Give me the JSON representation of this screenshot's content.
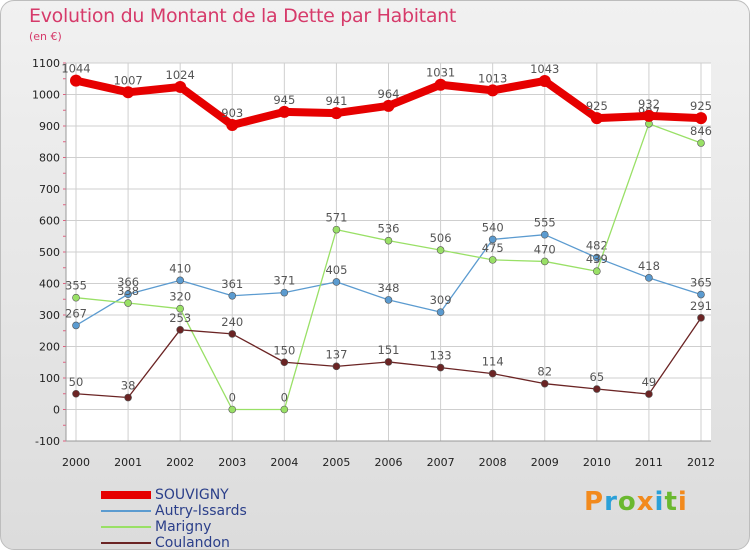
{
  "title": "Evolution du Montant de la Dette par Habitant",
  "subtitle": "(en €)",
  "logo": {
    "text": "Proxiti",
    "colors": [
      "#f28a1d",
      "#2aa0d8",
      "#6ab82f",
      "#f28a1d",
      "#2aa0d8",
      "#6ab82f",
      "#f28a1d"
    ]
  },
  "chart_data": {
    "type": "line",
    "categories": [
      "2000",
      "2001",
      "2002",
      "2003",
      "2004",
      "2005",
      "2006",
      "2007",
      "2008",
      "2009",
      "2010",
      "2011",
      "2012"
    ],
    "ylim": [
      -100,
      1100
    ],
    "yticks": [
      -100,
      0,
      100,
      200,
      300,
      400,
      500,
      600,
      700,
      800,
      900,
      1000,
      1100
    ],
    "grid": true,
    "legend_position": "bottom-left",
    "series": [
      {
        "name": "SOUVIGNY",
        "color": "#e60000",
        "width": 8,
        "values": [
          1044,
          1007,
          1024,
          903,
          945,
          941,
          964,
          1031,
          1013,
          1043,
          925,
          932,
          925
        ]
      },
      {
        "name": "Autry-Issards",
        "color": "#5b9bd0",
        "width": 1.3,
        "values": [
          267,
          366,
          410,
          361,
          371,
          405,
          348,
          309,
          540,
          555,
          482,
          418,
          365
        ]
      },
      {
        "name": "Marigny",
        "color": "#99e066",
        "width": 1.3,
        "values": [
          355,
          338,
          320,
          0,
          0,
          571,
          536,
          506,
          475,
          470,
          439,
          907,
          846
        ]
      },
      {
        "name": "Coulandon",
        "color": "#6b2424",
        "width": 1.3,
        "values": [
          50,
          38,
          253,
          240,
          150,
          137,
          151,
          133,
          114,
          82,
          65,
          49,
          291
        ]
      }
    ]
  }
}
